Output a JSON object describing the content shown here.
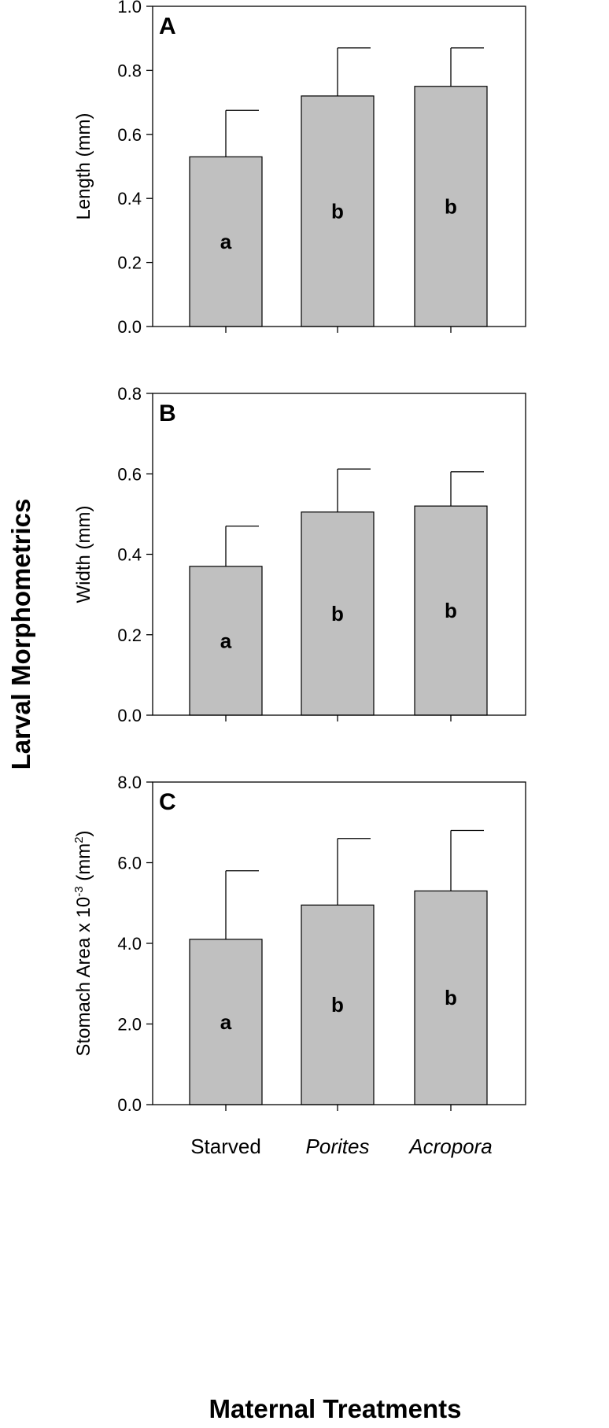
{
  "figure": {
    "ylabel_global": "Larval Morphometrics",
    "xlabel_global": "Maternal Treatments",
    "colors": {
      "bar_fill": "#c0c0c0",
      "stroke": "#000000",
      "background": "#ffffff"
    }
  },
  "chart_data": [
    {
      "type": "bar",
      "panel": "A",
      "categories": [
        "Starved",
        "Porites",
        "Acropora"
      ],
      "category_italic": [
        false,
        true,
        true
      ],
      "values": [
        0.53,
        0.72,
        0.75
      ],
      "error_plus": [
        0.145,
        0.15,
        0.12
      ],
      "significance": [
        "a",
        "b",
        "b"
      ],
      "ylabel": "Length (mm)",
      "ylim": [
        0.0,
        1.0
      ],
      "yticks": [
        0.0,
        0.2,
        0.4,
        0.6,
        0.8,
        1.0
      ],
      "ytick_labels": [
        "0.0",
        "0.2",
        "0.4",
        "0.6",
        "0.8",
        "1.0"
      ],
      "grid": false
    },
    {
      "type": "bar",
      "panel": "B",
      "categories": [
        "Starved",
        "Porites",
        "Acropora"
      ],
      "category_italic": [
        false,
        true,
        true
      ],
      "values": [
        0.37,
        0.505,
        0.52
      ],
      "error_plus": [
        0.1,
        0.107,
        0.085
      ],
      "significance": [
        "a",
        "b",
        "b"
      ],
      "ylabel": "Width (mm)",
      "ylim": [
        0.0,
        0.8
      ],
      "yticks": [
        0.0,
        0.2,
        0.4,
        0.6,
        0.8
      ],
      "ytick_labels": [
        "0.0",
        "0.2",
        "0.4",
        "0.6",
        "0.8"
      ],
      "grid": false
    },
    {
      "type": "bar",
      "panel": "C",
      "categories": [
        "Starved",
        "Porites",
        "Acropora"
      ],
      "category_italic": [
        false,
        true,
        true
      ],
      "values": [
        4.1,
        4.95,
        5.3
      ],
      "error_plus": [
        1.7,
        1.65,
        1.5
      ],
      "significance": [
        "a",
        "b",
        "b"
      ],
      "ylabel": "Stomach Area x 10",
      "ylabel_sup": "-3",
      "ylabel_unit": " (mm",
      "ylabel_unit_sup": "2",
      "ylabel_end": ")",
      "ylim": [
        0.0,
        8.0
      ],
      "yticks": [
        0.0,
        2.0,
        4.0,
        6.0,
        8.0
      ],
      "ytick_labels": [
        "0.0",
        "2.0",
        "4.0",
        "6.0",
        "8.0"
      ],
      "grid": false
    }
  ]
}
